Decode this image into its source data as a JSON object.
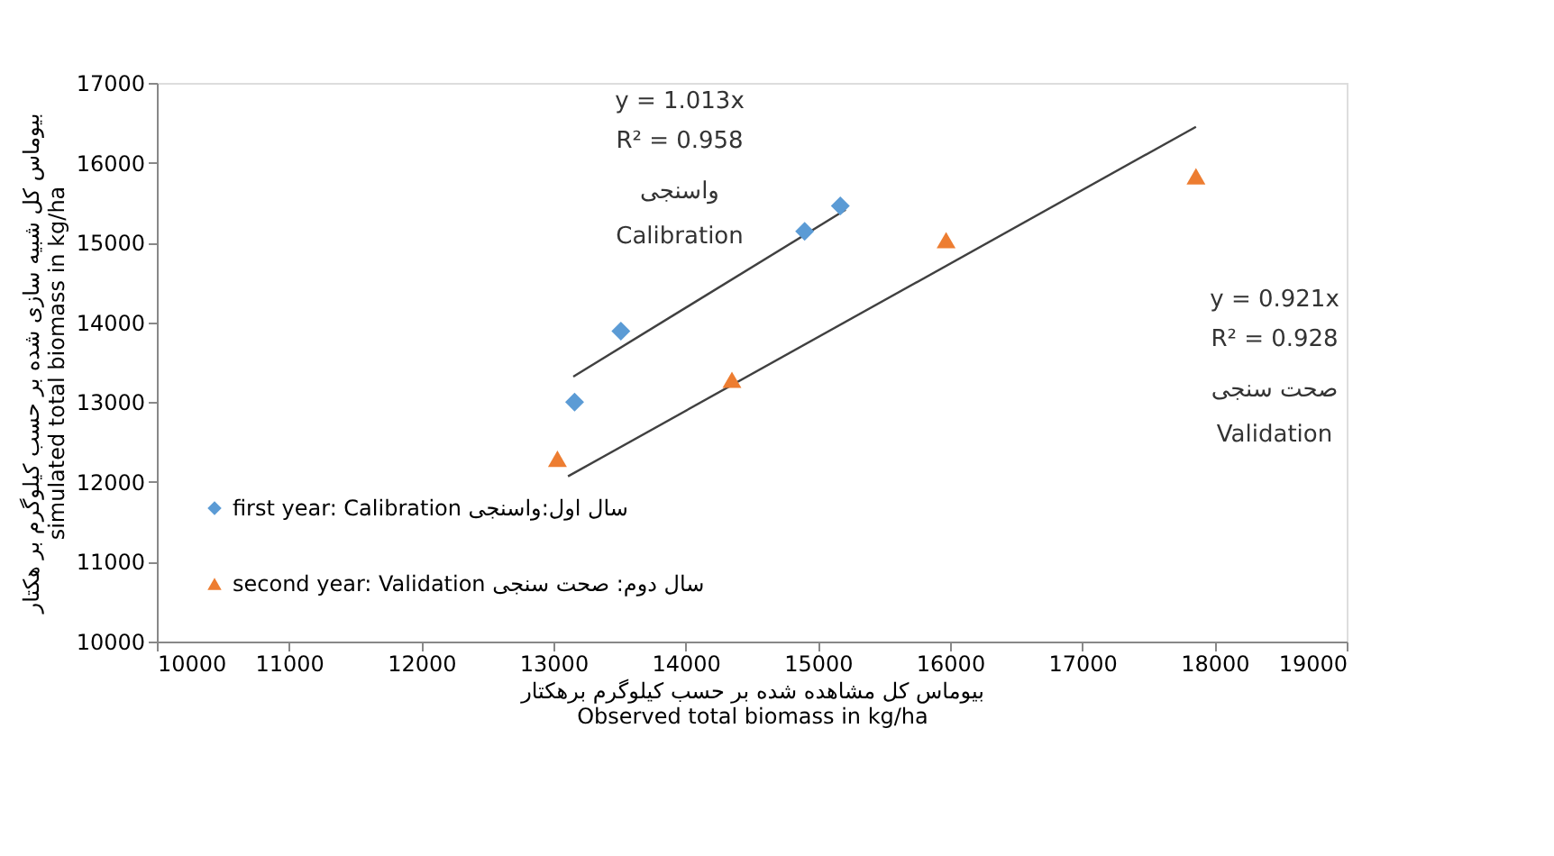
{
  "chart_data": {
    "type": "scatter",
    "xlabel": "بیوماس کل مشاهده شده بر حسب کیلوگرم برهکتار\nObserved total biomass in kg/ha",
    "ylabel": "بیوماس کل شبیه سازی شده بر حسب کیلوگرم بر هکتار\nsimulated total biomass in kg/ha",
    "xlim": [
      10000,
      19000
    ],
    "xticks": [
      10000,
      11000,
      12000,
      13000,
      14000,
      15000,
      16000,
      17000,
      18000,
      19000
    ],
    "ylim": [
      10000,
      17000
    ],
    "yticks": [
      10000,
      11000,
      12000,
      13000,
      14000,
      15000,
      16000,
      17000
    ],
    "grid": false,
    "legend": "bottom left",
    "series": [
      {
        "name": "first year: Calibration  سال اول:واسنجی",
        "marker": "diamond",
        "color": "#5b9bd5",
        "x": [
          13160,
          13510,
          14900,
          15170
        ],
        "values": [
          13000,
          13890,
          15140,
          15460
        ]
      },
      {
        "name": "second year: Validation  سال دوم: صحت سنجی",
        "marker": "triangle",
        "color": "#ed7d31",
        "x": [
          13030,
          14350,
          15970,
          17860
        ],
        "values": [
          12290,
          13280,
          15030,
          15830
        ]
      },
      {
        "type": "line",
        "color": "#404040",
        "x": [
          13150,
          15210
        ],
        "values": [
          13320,
          15410
        ]
      },
      {
        "type": "line",
        "color": "#404040",
        "x": [
          13110,
          17860
        ],
        "values": [
          12070,
          16450
        ]
      }
    ],
    "annotations": [
      "y = 1.013x",
      "R² = 0.958",
      "واسنجی",
      "Calibration",
      "y = 0.921x",
      "R² = 0.928",
      "صحت سنجی",
      "Validation"
    ]
  }
}
